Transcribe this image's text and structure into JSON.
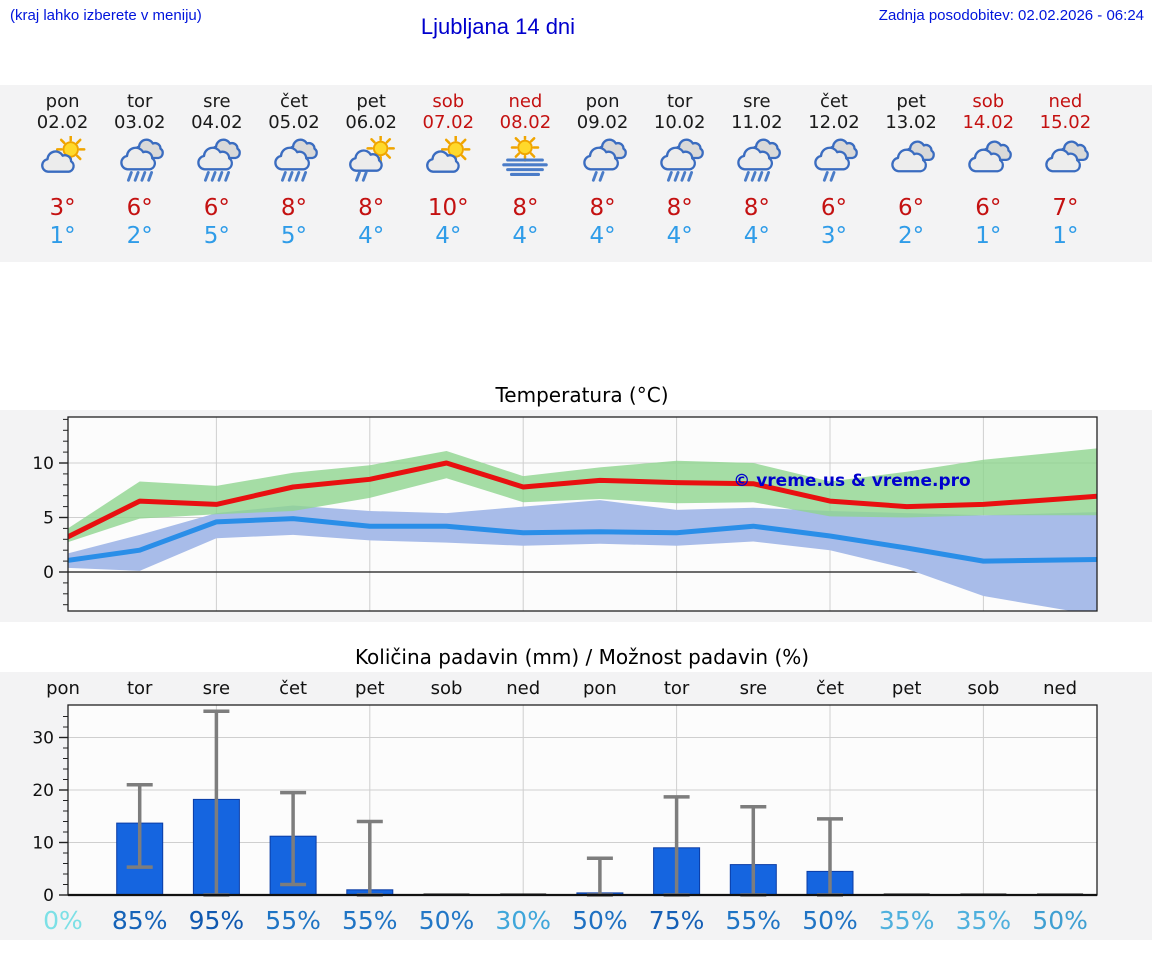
{
  "header": {
    "hint": "(kraj lahko izberete v meniju)",
    "title": "Ljubljana 14 dni",
    "updated": "Zadnja posodobitev: 02.02.2026 - 06:24"
  },
  "colors": {
    "header_blue": "#0014dc",
    "title_blue": "#0000cd",
    "weekend_red": "#c41111",
    "max_temp_red": "#c41111",
    "min_temp_blue": "#2f9ce8",
    "line_red": "#e81010",
    "line_blue": "#2a8ee8",
    "band_green": "#8fd48f",
    "band_blue": "#a8bce9",
    "bar_blue": "#1565e0",
    "whisker_grey": "#7d7d7d",
    "section_bg": "#f3f3f4"
  },
  "forecast_days": [
    {
      "day": "pon",
      "date": "02.02",
      "weekend": false,
      "icon": "sun-cloud",
      "tmax": "3°",
      "tmin": "1°"
    },
    {
      "day": "tor",
      "date": "03.02",
      "weekend": false,
      "icon": "rain",
      "tmax": "6°",
      "tmin": "2°"
    },
    {
      "day": "sre",
      "date": "04.02",
      "weekend": false,
      "icon": "rain",
      "tmax": "6°",
      "tmin": "5°"
    },
    {
      "day": "čet",
      "date": "05.02",
      "weekend": false,
      "icon": "rain",
      "tmax": "8°",
      "tmin": "5°"
    },
    {
      "day": "pet",
      "date": "06.02",
      "weekend": false,
      "icon": "sun-shower",
      "tmax": "8°",
      "tmin": "4°"
    },
    {
      "day": "sob",
      "date": "07.02",
      "weekend": true,
      "icon": "sun-cloud",
      "tmax": "10°",
      "tmin": "4°"
    },
    {
      "day": "ned",
      "date": "08.02",
      "weekend": true,
      "icon": "fog-sun",
      "tmax": "8°",
      "tmin": "4°"
    },
    {
      "day": "pon",
      "date": "09.02",
      "weekend": false,
      "icon": "light-rain",
      "tmax": "8°",
      "tmin": "4°"
    },
    {
      "day": "tor",
      "date": "10.02",
      "weekend": false,
      "icon": "rain",
      "tmax": "8°",
      "tmin": "4°"
    },
    {
      "day": "sre",
      "date": "11.02",
      "weekend": false,
      "icon": "rain",
      "tmax": "8°",
      "tmin": "4°"
    },
    {
      "day": "čet",
      "date": "12.02",
      "weekend": false,
      "icon": "light-rain",
      "tmax": "6°",
      "tmin": "3°"
    },
    {
      "day": "pet",
      "date": "13.02",
      "weekend": false,
      "icon": "cloudy",
      "tmax": "6°",
      "tmin": "2°"
    },
    {
      "day": "sob",
      "date": "14.02",
      "weekend": true,
      "icon": "cloudy",
      "tmax": "6°",
      "tmin": "1°"
    },
    {
      "day": "ned",
      "date": "15.02",
      "weekend": true,
      "icon": "cloudy",
      "tmax": "7°",
      "tmin": "1°"
    }
  ],
  "chart_data": [
    {
      "type": "line",
      "title": "Temperatura (°C)",
      "categories": [
        "pon",
        "tor",
        "sre",
        "čet",
        "pet",
        "sob",
        "ned",
        "pon",
        "tor",
        "sre",
        "čet",
        "pet",
        "sob",
        "ned"
      ],
      "yticks": [
        0,
        5,
        10
      ],
      "ylim": [
        -3.6,
        14.2
      ],
      "grid": "on",
      "annotation": "© vreme.us & vreme.pro",
      "series": [
        {
          "name": "max-temp",
          "color": "#e81010",
          "values": [
            3.0,
            6.5,
            6.2,
            7.8,
            8.5,
            10.0,
            7.8,
            8.4,
            8.2,
            8.1,
            6.5,
            6.0,
            6.2,
            6.7
          ]
        },
        {
          "name": "min-temp",
          "color": "#2a8ee8",
          "values": [
            1.0,
            2.0,
            4.6,
            4.9,
            4.2,
            4.2,
            3.6,
            3.7,
            3.6,
            4.2,
            3.3,
            2.2,
            1.0,
            1.1
          ]
        }
      ],
      "bands": [
        {
          "name": "max-range",
          "color": "#8fd48f",
          "upper": [
            3.7,
            8.3,
            7.9,
            9.1,
            9.8,
            11.1,
            8.8,
            9.6,
            10.2,
            10.0,
            8.3,
            9.2,
            10.3,
            11.0
          ],
          "lower": [
            2.6,
            4.9,
            5.3,
            5.6,
            6.8,
            8.6,
            6.4,
            6.7,
            6.3,
            6.4,
            5.1,
            5.0,
            5.2,
            5.2
          ]
        },
        {
          "name": "min-range",
          "color": "#a8bce9",
          "upper": [
            1.6,
            3.4,
            5.4,
            6.1,
            5.6,
            5.4,
            6.0,
            6.6,
            5.7,
            5.9,
            5.6,
            5.4,
            5.2,
            5.4
          ],
          "lower": [
            0.4,
            0.1,
            3.1,
            3.4,
            2.9,
            2.7,
            2.4,
            2.6,
            2.4,
            2.8,
            2.0,
            0.3,
            -2.2,
            -3.4
          ]
        }
      ]
    },
    {
      "type": "bar",
      "title": "Količina padavin (mm) / Možnost padavin (%)",
      "categories": [
        "pon",
        "tor",
        "sre",
        "čet",
        "pet",
        "sob",
        "ned",
        "pon",
        "tor",
        "sre",
        "čet",
        "pet",
        "sob",
        "ned"
      ],
      "values": [
        0,
        13.7,
        18.2,
        11.2,
        1.0,
        0.15,
        0.15,
        0.4,
        9.0,
        5.8,
        4.5,
        0.15,
        0.15,
        0.2
      ],
      "error_high": [
        null,
        21,
        35,
        19.5,
        14,
        null,
        null,
        7,
        18.7,
        16.8,
        14.5,
        null,
        null,
        null
      ],
      "error_low": [
        null,
        5.3,
        0,
        2,
        0,
        null,
        null,
        0,
        0,
        0,
        0,
        null,
        null,
        null
      ],
      "yticks": [
        0,
        10,
        20,
        30
      ],
      "ylim": [
        0,
        36.2
      ],
      "grid": "on",
      "percent_labels": [
        "0%",
        "85%",
        "95%",
        "55%",
        "55%",
        "50%",
        "30%",
        "50%",
        "75%",
        "55%",
        "50%",
        "35%",
        "35%",
        "50%"
      ],
      "percent_colors": [
        "#7ce0e6",
        "#1563b8",
        "#0f58b0",
        "#1f74c4",
        "#1f74c4",
        "#2277c6",
        "#3fa6da",
        "#1e70c2",
        "#155fb6",
        "#1f74c4",
        "#2074c4",
        "#4fb0dd",
        "#4fb0dd",
        "#3f9fd2"
      ]
    }
  ]
}
